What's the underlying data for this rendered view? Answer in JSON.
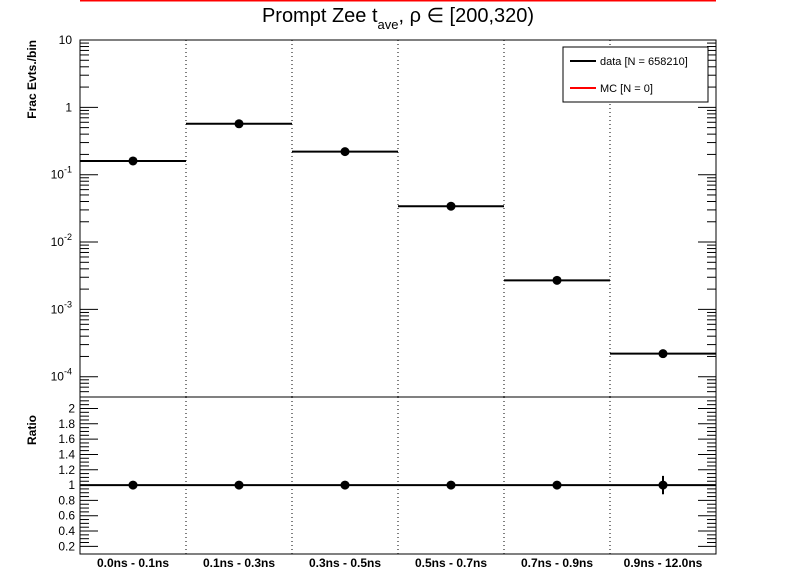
{
  "chart_data": {
    "type": "scatter",
    "title_main": "Prompt Zee t",
    "title_sub": "ave",
    "title_tail": ",  ρ ∈ [200,320)",
    "categories": [
      "0.0ns - 0.1ns",
      "0.1ns - 0.3ns",
      "0.3ns - 0.5ns",
      "0.5ns - 0.7ns",
      "0.7ns - 0.9ns",
      "0.9ns - 12.0ns"
    ],
    "upper": {
      "ylabel": "Frac Evts./bin",
      "scale": "log",
      "ylim": [
        5e-05,
        10
      ],
      "major_ticks": [
        {
          "value": 10,
          "base": "10",
          "exp": ""
        },
        {
          "value": 1,
          "base": "1",
          "exp": ""
        },
        {
          "value": 0.1,
          "base": "10",
          "exp": "-1"
        },
        {
          "value": 0.01,
          "base": "10",
          "exp": "-2"
        },
        {
          "value": 0.001,
          "base": "10",
          "exp": "-3"
        },
        {
          "value": 0.0001,
          "base": "10",
          "exp": "-4"
        }
      ],
      "series": [
        {
          "name": "data [N = 658210]",
          "color": "#000000",
          "values": [
            0.16,
            0.57,
            0.22,
            0.034,
            0.0027,
            0.00022
          ]
        },
        {
          "name": "MC [N = 0]",
          "color": "#ff0000",
          "values": []
        }
      ],
      "legend_position": "top-right"
    },
    "lower": {
      "ylabel": "Ratio",
      "ylim": [
        0.1,
        2.15
      ],
      "tick_labels": [
        "2",
        "1.8",
        "1.6",
        "1.4",
        "1.2",
        "1",
        "0.8",
        "0.6",
        "0.4",
        "0.2"
      ],
      "values": [
        1.0,
        1.0,
        1.0,
        1.0,
        1.0,
        1.0
      ],
      "errors": [
        0.0,
        0.0,
        0.0,
        0.0,
        0.0,
        0.12
      ]
    },
    "grid_x": true,
    "grid_y": false
  }
}
